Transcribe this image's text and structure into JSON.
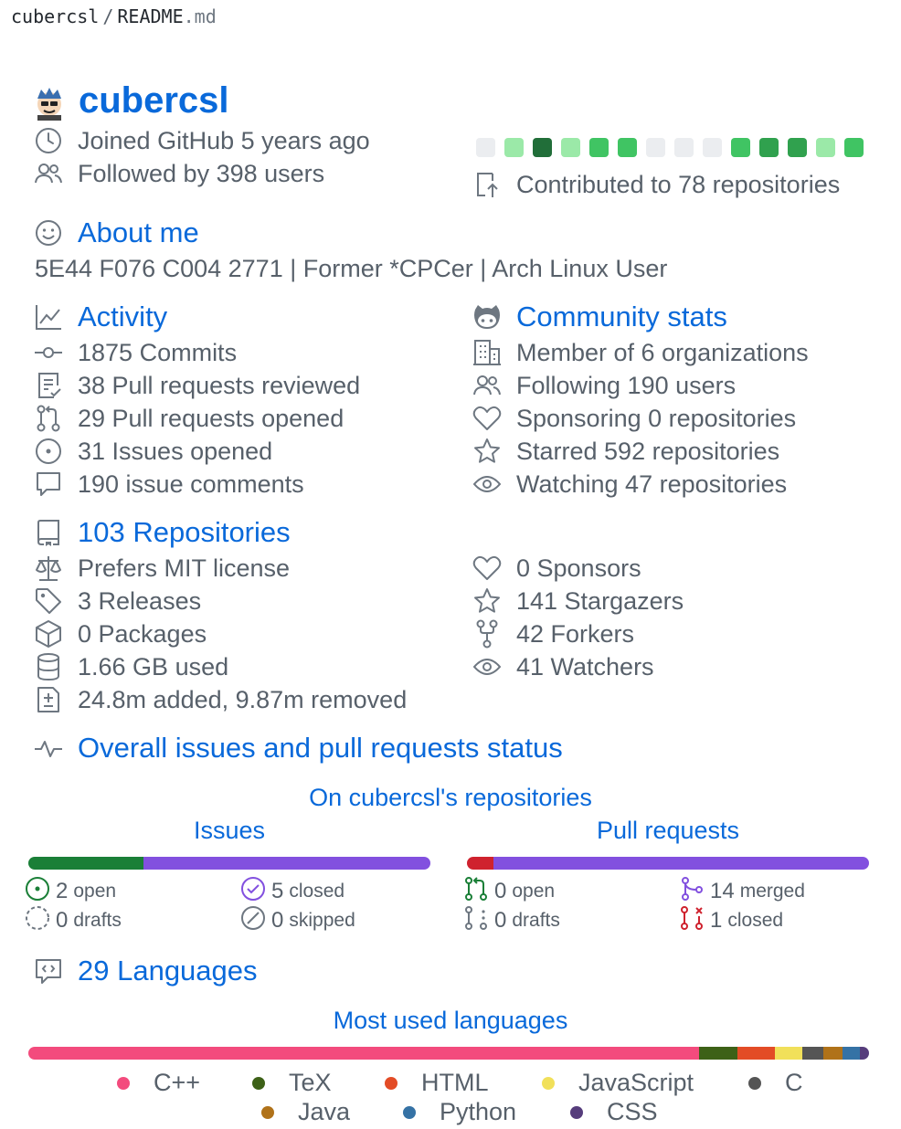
{
  "breadcrumb": {
    "owner": "cubercsl",
    "separator": "/",
    "file_base": "README",
    "file_ext": ".md"
  },
  "profile": {
    "username": "cubercsl",
    "joined": "Joined GitHub 5 years ago",
    "followed": "Followed by 398 users",
    "contributed": "Contributed to 78 repositories",
    "calendar_levels": [
      0,
      1,
      4,
      1,
      2,
      2,
      0,
      0,
      0,
      2,
      3,
      3,
      1,
      2
    ]
  },
  "about": {
    "heading": "About me",
    "text": "5E44 F076 C004 2771 | Former *CPCer | Arch Linux User"
  },
  "activity": {
    "heading": "Activity",
    "items": [
      "1875 Commits",
      "38 Pull requests reviewed",
      "29 Pull requests opened",
      "31 Issues opened",
      "190 issue comments"
    ]
  },
  "community": {
    "heading": "Community stats",
    "items": [
      "Member of 6 organizations",
      "Following 190 users",
      "Sponsoring 0 repositories",
      "Starred 592 repositories",
      "Watching 47 repositories"
    ]
  },
  "repositories": {
    "heading": "103 Repositories",
    "left": [
      "Prefers MIT license",
      "3 Releases",
      "0 Packages",
      "1.66 GB used",
      "24.8m added, 9.87m removed"
    ],
    "right": [
      "0 Sponsors",
      "141 Stargazers",
      "42 Forkers",
      "41 Watchers"
    ]
  },
  "overall": {
    "heading": "Overall issues and pull requests status",
    "subtitle": "On cubercsl's repositories",
    "issues": {
      "title": "Issues",
      "open_fraction": 0.2857,
      "open": {
        "num": "2",
        "label": "open"
      },
      "closed": {
        "num": "5",
        "label": "closed"
      },
      "drafts": {
        "num": "0",
        "label": "drafts"
      },
      "skipped": {
        "num": "0",
        "label": "skipped"
      }
    },
    "pulls": {
      "title": "Pull requests",
      "closed_fraction": 0.0667,
      "open": {
        "num": "0",
        "label": "open"
      },
      "merged": {
        "num": "14",
        "label": "merged"
      },
      "drafts": {
        "num": "0",
        "label": "drafts"
      },
      "closed": {
        "num": "1",
        "label": "closed"
      }
    }
  },
  "languages": {
    "heading": "29 Languages",
    "subtitle": "Most used languages",
    "segments": [
      {
        "name": "C++",
        "share": 0.798,
        "color": "#f34b7d"
      },
      {
        "name": "TeX",
        "share": 0.046,
        "color": "#3d6117"
      },
      {
        "name": "HTML",
        "share": 0.044,
        "color": "#e34c26"
      },
      {
        "name": "JavaScript",
        "share": 0.033,
        "color": "#f1e05a"
      },
      {
        "name": "C",
        "share": 0.025,
        "color": "#555555"
      },
      {
        "name": "Java",
        "share": 0.022,
        "color": "#b07219"
      },
      {
        "name": "Python",
        "share": 0.021,
        "color": "#3572a5"
      },
      {
        "name": "CSS",
        "share": 0.011,
        "color": "#563d7c"
      }
    ],
    "legend": [
      "C++",
      "TeX",
      "HTML",
      "JavaScript",
      "C",
      "Java",
      "Python",
      "CSS"
    ]
  },
  "colors": {
    "link": "#0969da",
    "open_green": "#1a7f37",
    "closed_purple": "#8250df",
    "closed_red": "#cf222e",
    "calendar": [
      "#ebedf0",
      "#9be9a8",
      "#40c463",
      "#30a14e",
      "#216e39"
    ]
  }
}
